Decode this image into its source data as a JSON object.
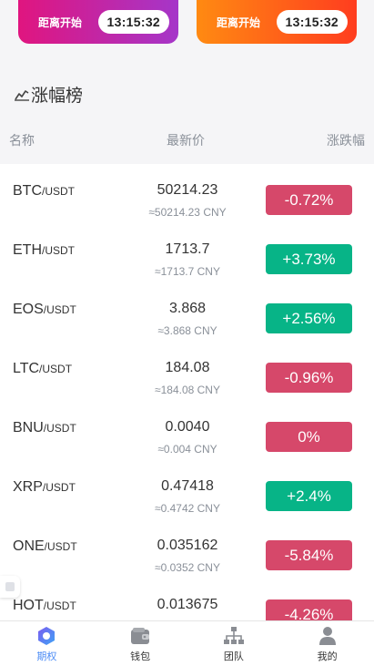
{
  "promos": [
    {
      "label": "距离开始",
      "time": "13:15:32"
    },
    {
      "label": "距离开始",
      "time": "13:15:32"
    }
  ],
  "section": {
    "title": "涨幅榜"
  },
  "columns": {
    "name": "名称",
    "price": "最新价",
    "change": "涨跌幅"
  },
  "rows": [
    {
      "base": "BTC",
      "quote": "/USDT",
      "price": "50214.23",
      "cny": "≈50214.23 CNY",
      "change": "-0.72%",
      "dir": "down"
    },
    {
      "base": "ETH",
      "quote": "/USDT",
      "price": "1713.7",
      "cny": "≈1713.7 CNY",
      "change": "+3.73%",
      "dir": "up"
    },
    {
      "base": "EOS",
      "quote": "/USDT",
      "price": "3.868",
      "cny": "≈3.868 CNY",
      "change": "+2.56%",
      "dir": "up"
    },
    {
      "base": "LTC",
      "quote": "/USDT",
      "price": "184.08",
      "cny": "≈184.08 CNY",
      "change": "-0.96%",
      "dir": "down"
    },
    {
      "base": "BNU",
      "quote": "/USDT",
      "price": "0.0040",
      "cny": "≈0.004 CNY",
      "change": "0%",
      "dir": "down"
    },
    {
      "base": "XRP",
      "quote": "/USDT",
      "price": "0.47418",
      "cny": "≈0.4742 CNY",
      "change": "+2.4%",
      "dir": "up"
    },
    {
      "base": "ONE",
      "quote": "/USDT",
      "price": "0.035162",
      "cny": "≈0.0352 CNY",
      "change": "-5.84%",
      "dir": "down"
    },
    {
      "base": "HOT",
      "quote": "/USDT",
      "price": "0.013675",
      "cny": "",
      "change": "-4.26%",
      "dir": "down"
    }
  ],
  "nav": [
    {
      "label": "期权",
      "icon": "options-icon",
      "active": true
    },
    {
      "label": "钱包",
      "icon": "wallet-icon",
      "active": false
    },
    {
      "label": "团队",
      "icon": "team-icon",
      "active": false
    },
    {
      "label": "我的",
      "icon": "user-icon",
      "active": false
    }
  ],
  "colors": {
    "up": "#07b487",
    "down": "#d6486a",
    "active": "#4d8cf5"
  }
}
